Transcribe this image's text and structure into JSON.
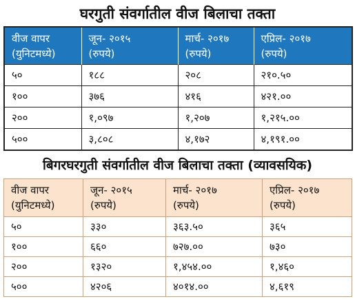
{
  "domestic": {
    "title": "घरगुती संवर्गातील वीज बिलाचा तक्ता",
    "headers": [
      {
        "line1": "वीज वापर",
        "line2": "(युनिटमध्ये)"
      },
      {
        "line1": "जून- २०१५",
        "line2": "(रुपये)"
      },
      {
        "line1": "मार्च- २०१७",
        "line2": "(रुपये)"
      },
      {
        "line1": "एप्रिल- २०१७",
        "line2": "(रुपये)"
      }
    ],
    "rows": [
      [
        "५०",
        "१८८",
        "२०८",
        "२१०.५०"
      ],
      [
        "१००",
        "३७६",
        "४१६",
        "४२१.००"
      ],
      [
        "२००",
        "१,०९७",
        "१,२०७",
        "१,२१५.००"
      ],
      [
        "५००",
        "३,८०८",
        "४,१७२",
        "४,१९१.००"
      ]
    ]
  },
  "commercial": {
    "title": "बिगरघरगुती संवर्गातील वीज बिलाचा तक्ता (व्यावसयिक)",
    "headers": [
      {
        "line1": "वीज वापर",
        "line2": "(युनिटमध्ये)"
      },
      {
        "line1": "जून- २०१५",
        "line2": "(रुपये)"
      },
      {
        "line1": "मार्च- २०१७",
        "line2": "(रुपये)"
      },
      {
        "line1": "एप्रिल- २०१७",
        "line2": "(रुपये)"
      }
    ],
    "rows": [
      [
        "५०",
        "३३०",
        "३६३.५०",
        "३६५"
      ],
      [
        "१००",
        "६६०",
        "७२७.००",
        "७३०"
      ],
      [
        "२००",
        "१३२०",
        "१,४५४.००",
        "१,४६०"
      ],
      [
        "५००",
        "४२०६",
        "४०१४.००",
        "४,६१९"
      ]
    ]
  }
}
